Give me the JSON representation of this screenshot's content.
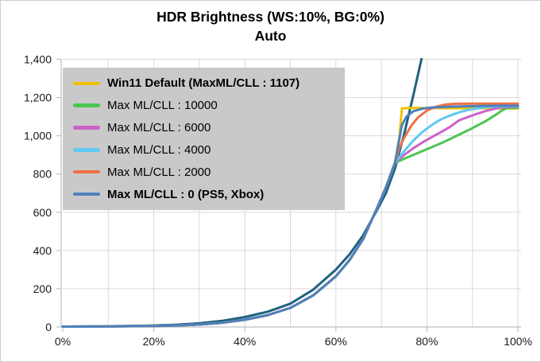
{
  "title": {
    "line1": "HDR Brightness (WS:10%, BG:0%)",
    "line2": "Auto"
  },
  "colors": {
    "grid": "#d9d9d9",
    "axis": "#bfbfbf",
    "text": "#1a1a1a",
    "chart_border": "#d0cece",
    "background": "#ffffff",
    "legend_background": "#c9c9c9"
  },
  "chart_data": {
    "type": "line",
    "title": "HDR Brightness (WS:10%, BG:0%)",
    "subtitle": "Auto",
    "grid": true,
    "x_axis": {
      "range": [
        0,
        100
      ],
      "tick_labels": [
        "0%",
        "20%",
        "40%",
        "60%",
        "80%",
        "100%"
      ],
      "tick_values": [
        0,
        20,
        40,
        60,
        80,
        100
      ],
      "gridline_step": 10
    },
    "y_axis": {
      "range": [
        0,
        1400
      ],
      "tick_labels": [
        "0",
        "200",
        "400",
        "600",
        "800",
        "1,000",
        "1,200",
        "1,400"
      ],
      "tick_values": [
        0,
        200,
        400,
        600,
        800,
        1000,
        1200,
        1400
      ],
      "gridline_step": 200
    },
    "legend": {
      "position": "top-left-inside",
      "background": "#c9c9c9"
    },
    "series": [
      {
        "id": "reference-unlabeled",
        "label": null,
        "in_legend": false,
        "bold": false,
        "color": "#20627f",
        "points": [
          [
            0,
            2
          ],
          [
            5,
            3
          ],
          [
            10,
            4
          ],
          [
            15,
            6
          ],
          [
            20,
            8
          ],
          [
            25,
            12
          ],
          [
            30,
            19
          ],
          [
            35,
            32
          ],
          [
            40,
            52
          ],
          [
            45,
            80
          ],
          [
            50,
            122
          ],
          [
            55,
            195
          ],
          [
            60,
            300
          ],
          [
            63,
            380
          ],
          [
            66,
            480
          ],
          [
            69,
            610
          ],
          [
            71,
            700
          ],
          [
            73,
            830
          ],
          [
            75,
            1010
          ],
          [
            77,
            1210
          ],
          [
            78.8,
            1400
          ],
          [
            79.4,
            1470
          ]
        ]
      },
      {
        "id": "win11-default",
        "label": "Win11 Default (MaxML/CLL : 1107)",
        "in_legend": true,
        "bold": true,
        "color": "#f0c000",
        "points": [
          [
            0,
            2
          ],
          [
            5,
            2
          ],
          [
            10,
            3
          ],
          [
            15,
            4
          ],
          [
            20,
            5
          ],
          [
            25,
            8
          ],
          [
            30,
            13
          ],
          [
            35,
            22
          ],
          [
            40,
            38
          ],
          [
            45,
            62
          ],
          [
            50,
            100
          ],
          [
            55,
            165
          ],
          [
            60,
            265
          ],
          [
            63,
            350
          ],
          [
            66,
            460
          ],
          [
            69,
            620
          ],
          [
            71,
            730
          ],
          [
            73,
            860
          ],
          [
            74,
            1000
          ],
          [
            74.5,
            1143
          ],
          [
            76,
            1145
          ],
          [
            80,
            1145
          ],
          [
            85,
            1144
          ],
          [
            90,
            1144
          ],
          [
            95,
            1143
          ],
          [
            100,
            1143
          ]
        ]
      },
      {
        "id": "maxml-10000",
        "label": "Max ML/CLL : 10000",
        "in_legend": true,
        "bold": false,
        "color": "#4cc552",
        "points": [
          [
            0,
            2
          ],
          [
            5,
            2
          ],
          [
            10,
            3
          ],
          [
            15,
            4
          ],
          [
            20,
            5
          ],
          [
            25,
            8
          ],
          [
            30,
            13
          ],
          [
            35,
            22
          ],
          [
            40,
            38
          ],
          [
            45,
            62
          ],
          [
            50,
            100
          ],
          [
            55,
            165
          ],
          [
            60,
            265
          ],
          [
            63,
            350
          ],
          [
            66,
            460
          ],
          [
            69,
            620
          ],
          [
            71,
            730
          ],
          [
            73,
            858
          ],
          [
            75,
            880
          ],
          [
            77,
            900
          ],
          [
            79,
            920
          ],
          [
            81,
            940
          ],
          [
            83,
            960
          ],
          [
            85,
            982
          ],
          [
            87,
            1005
          ],
          [
            89,
            1028
          ],
          [
            91,
            1052
          ],
          [
            93,
            1078
          ],
          [
            95,
            1108
          ],
          [
            96.5,
            1132
          ],
          [
            97.5,
            1145
          ],
          [
            100,
            1146
          ]
        ]
      },
      {
        "id": "maxml-6000",
        "label": "Max ML/CLL : 6000",
        "in_legend": true,
        "bold": false,
        "color": "#cb62cb",
        "points": [
          [
            0,
            2
          ],
          [
            5,
            2
          ],
          [
            10,
            3
          ],
          [
            15,
            4
          ],
          [
            20,
            5
          ],
          [
            25,
            8
          ],
          [
            30,
            13
          ],
          [
            35,
            22
          ],
          [
            40,
            38
          ],
          [
            45,
            62
          ],
          [
            50,
            100
          ],
          [
            55,
            165
          ],
          [
            60,
            265
          ],
          [
            63,
            350
          ],
          [
            66,
            460
          ],
          [
            69,
            620
          ],
          [
            71,
            730
          ],
          [
            73,
            860
          ],
          [
            75,
            900
          ],
          [
            77,
            935
          ],
          [
            79,
            965
          ],
          [
            81,
            992
          ],
          [
            83,
            1018
          ],
          [
            85,
            1045
          ],
          [
            87,
            1080
          ],
          [
            89,
            1098
          ],
          [
            91,
            1115
          ],
          [
            93,
            1130
          ],
          [
            95,
            1142
          ],
          [
            97,
            1150
          ],
          [
            100,
            1154
          ]
        ]
      },
      {
        "id": "maxml-4000",
        "label": "Max ML/CLL : 4000",
        "in_legend": true,
        "bold": false,
        "color": "#5fc9f3",
        "points": [
          [
            0,
            2
          ],
          [
            5,
            2
          ],
          [
            10,
            3
          ],
          [
            15,
            4
          ],
          [
            20,
            5
          ],
          [
            25,
            8
          ],
          [
            30,
            13
          ],
          [
            35,
            22
          ],
          [
            40,
            38
          ],
          [
            45,
            62
          ],
          [
            50,
            100
          ],
          [
            55,
            165
          ],
          [
            60,
            265
          ],
          [
            63,
            350
          ],
          [
            66,
            460
          ],
          [
            69,
            620
          ],
          [
            71,
            730
          ],
          [
            73,
            860
          ],
          [
            75,
            920
          ],
          [
            77,
            975
          ],
          [
            79,
            1020
          ],
          [
            81,
            1055
          ],
          [
            83,
            1085
          ],
          [
            85,
            1105
          ],
          [
            87,
            1122
          ],
          [
            89,
            1135
          ],
          [
            91,
            1143
          ],
          [
            93,
            1149
          ],
          [
            95,
            1153
          ],
          [
            100,
            1156
          ]
        ]
      },
      {
        "id": "maxml-2000",
        "label": "Max ML/CLL : 2000",
        "in_legend": true,
        "bold": false,
        "color": "#ee7045",
        "points": [
          [
            0,
            2
          ],
          [
            5,
            2
          ],
          [
            10,
            3
          ],
          [
            15,
            4
          ],
          [
            20,
            5
          ],
          [
            25,
            8
          ],
          [
            30,
            13
          ],
          [
            35,
            22
          ],
          [
            40,
            38
          ],
          [
            45,
            62
          ],
          [
            50,
            100
          ],
          [
            55,
            165
          ],
          [
            60,
            265
          ],
          [
            63,
            350
          ],
          [
            66,
            460
          ],
          [
            69,
            620
          ],
          [
            71,
            730
          ],
          [
            73,
            860
          ],
          [
            74,
            940
          ],
          [
            75,
            990
          ],
          [
            76.5,
            1050
          ],
          [
            78,
            1095
          ],
          [
            80,
            1132
          ],
          [
            82,
            1152
          ],
          [
            84,
            1163
          ],
          [
            86,
            1167
          ],
          [
            90,
            1168
          ],
          [
            95,
            1168
          ],
          [
            100,
            1168
          ]
        ]
      },
      {
        "id": "maxml-0",
        "label": "Max ML/CLL : 0 (PS5, Xbox)",
        "in_legend": true,
        "bold": true,
        "color": "#4e81bd",
        "points": [
          [
            0,
            2
          ],
          [
            5,
            2
          ],
          [
            10,
            3
          ],
          [
            15,
            4
          ],
          [
            20,
            5
          ],
          [
            25,
            8
          ],
          [
            30,
            13
          ],
          [
            35,
            22
          ],
          [
            40,
            38
          ],
          [
            45,
            62
          ],
          [
            50,
            100
          ],
          [
            55,
            165
          ],
          [
            60,
            265
          ],
          [
            63,
            350
          ],
          [
            66,
            460
          ],
          [
            69,
            620
          ],
          [
            71,
            730
          ],
          [
            73,
            860
          ],
          [
            74,
            990
          ],
          [
            74.5,
            1055
          ],
          [
            75.5,
            1100
          ],
          [
            77,
            1128
          ],
          [
            79,
            1142
          ],
          [
            81,
            1148
          ],
          [
            85,
            1152
          ],
          [
            90,
            1155
          ],
          [
            95,
            1157
          ],
          [
            100,
            1158
          ]
        ]
      }
    ]
  }
}
